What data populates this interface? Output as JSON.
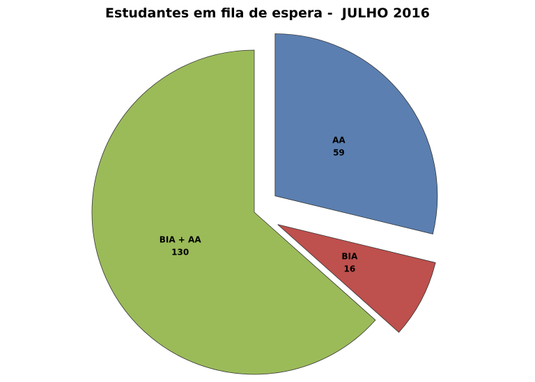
{
  "chart_data": {
    "type": "pie",
    "title": "Estudantes em fila de espera -  JULHO 2016",
    "slices": [
      {
        "label": "AA",
        "value": 59,
        "color": "#5B7FB1",
        "exploded": true
      },
      {
        "label": "BIA",
        "value": 16,
        "color": "#BE504D",
        "exploded": true
      },
      {
        "label": "BIA + AA",
        "value": 130,
        "color": "#9BBB59",
        "exploded": false
      }
    ],
    "start_angle": "12 o'clock",
    "direction": "clockwise",
    "legend": "none"
  }
}
